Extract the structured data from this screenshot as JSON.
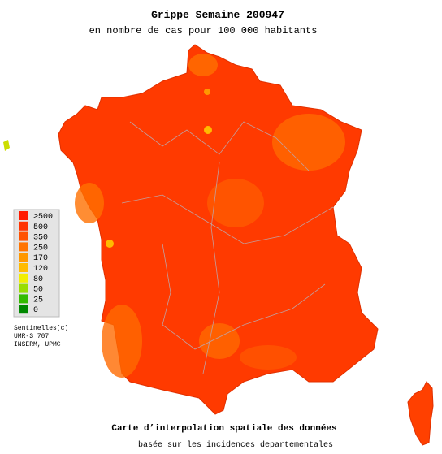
{
  "title": "Grippe Semaine 200947",
  "subtitle": "en nombre de cas pour 100 000 habitants",
  "legend": {
    "items": [
      {
        "label": ">500",
        "color": "#ff1a00"
      },
      {
        "label": "500",
        "color": "#ff3300"
      },
      {
        "label": "350",
        "color": "#ff5200"
      },
      {
        "label": "250",
        "color": "#ff7400"
      },
      {
        "label": "170",
        "color": "#ff9800"
      },
      {
        "label": "120",
        "color": "#ffbb00"
      },
      {
        "label": "80",
        "color": "#f2ee00"
      },
      {
        "label": "50",
        "color": "#99dd00"
      },
      {
        "label": "25",
        "color": "#33bb00"
      },
      {
        "label": "0",
        "color": "#008800"
      }
    ]
  },
  "credits": [
    "Sentinelles(c)",
    "UMR-S 707",
    "INSERM, UPMC"
  ],
  "footer": {
    "line1": "Carte d’interpolation spatiale des données",
    "line2": "basée sur les incidences departementales"
  }
}
